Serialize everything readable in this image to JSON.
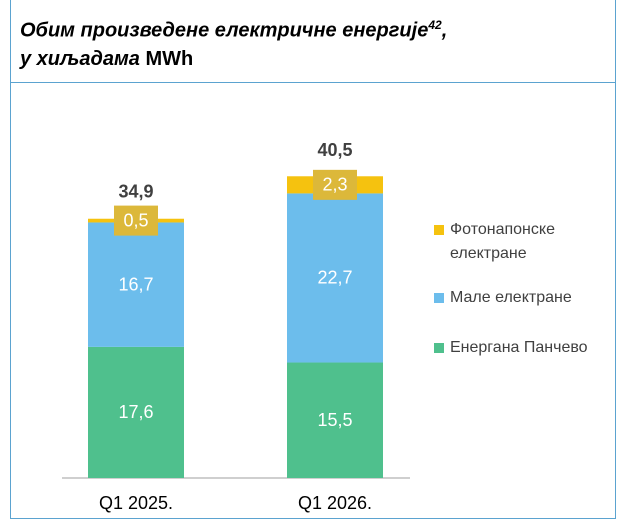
{
  "chart_data": {
    "type": "stacked_bar",
    "title": "Обим произведене електричне енергије",
    "title_note": "42",
    "title_tail": ",",
    "subtitle": "у хиљадама",
    "unit": "MWh",
    "categories": [
      "Q1 2025.",
      "Q1 2026."
    ],
    "series": [
      {
        "name": "Енергана Панчево",
        "color": "#4fc08d",
        "values": [
          17.6,
          15.5
        ],
        "value_labels": [
          "17,6",
          "15,5"
        ]
      },
      {
        "name": "Мале електране",
        "color": "#6cbdec",
        "values": [
          16.7,
          22.7
        ],
        "value_labels": [
          "16,7",
          "22,7"
        ]
      },
      {
        "name": "Фотонапонске електране",
        "color": "#f5c20f",
        "values": [
          0.5,
          2.3
        ],
        "value_labels": [
          "0,5",
          "2,3"
        ]
      }
    ],
    "totals": [
      34.9,
      40.5
    ],
    "totals_labels": [
      "34,9",
      "40,5"
    ]
  }
}
